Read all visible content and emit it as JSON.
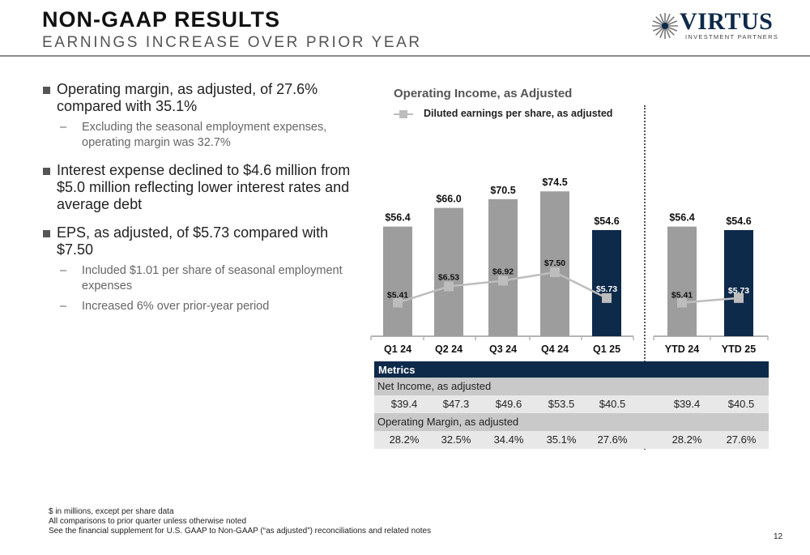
{
  "header": {
    "title": "NON-GAAP RESULTS",
    "subtitle": "EARNINGS INCREASE OVER PRIOR YEAR"
  },
  "logo": {
    "wordmark": "VIRTUS",
    "tagline": "INVESTMENT PARTNERS",
    "brand_color": "#0e2a4a"
  },
  "bullets": [
    {
      "text": "Operating margin, as adjusted, of 27.6% compared with 35.1%",
      "subs": [
        "Excluding the seasonal employment expenses, operating margin was 32.7%"
      ]
    },
    {
      "text": "Interest expense declined to $4.6 million from $5.0 million reflecting lower interest rates and average debt",
      "subs": []
    },
    {
      "text": "EPS, as adjusted, of $5.73 compared with $7.50",
      "subs": [
        "Included $1.01 per share of seasonal employment expenses",
        "Increased 6% over prior-year period"
      ]
    }
  ],
  "chart_data": {
    "type": "bar",
    "title": "Operating Income, as Adjusted",
    "categories": [
      "Q1 24",
      "Q2 24",
      "Q3 24",
      "Q4 24",
      "Q1 25",
      "YTD 24",
      "YTD 25"
    ],
    "series": [
      {
        "type": "bar",
        "values": [
          56.4,
          66.0,
          70.5,
          74.5,
          54.6,
          56.4,
          54.6
        ],
        "labels": [
          "$56.4",
          "$66.0",
          "$70.5",
          "$74.5",
          "$54.6",
          "$56.4",
          "$54.6"
        ],
        "colors": [
          "#9d9d9d",
          "#9d9d9d",
          "#9d9d9d",
          "#9d9d9d",
          "#0e2a4a",
          "#9d9d9d",
          "#0e2a4a"
        ]
      },
      {
        "type": "line",
        "name": "Diluted earnings per share, as adjusted",
        "values": [
          5.41,
          6.53,
          6.92,
          7.5,
          5.73,
          5.41,
          5.73
        ],
        "labels": [
          "$5.41",
          "$6.53",
          "$6.92",
          "$7.50",
          "$5.73",
          "$5.41",
          "$5.73"
        ],
        "color": "#bdbdbd"
      }
    ],
    "groups": [
      [
        "Q1 24",
        "Q2 24",
        "Q3 24",
        "Q4 24",
        "Q1 25"
      ],
      [
        "YTD 24",
        "YTD 25"
      ]
    ],
    "legend_position": "top-left",
    "grid": false
  },
  "metrics": {
    "header": "Metrics",
    "rows": [
      {
        "label": "Net Income, as adjusted",
        "values": [
          "$39.4",
          "$47.3",
          "$49.6",
          "$53.5",
          "$40.5",
          "$39.4",
          "$40.5"
        ]
      },
      {
        "label": "Operating Margin, as adjusted",
        "values": [
          "28.2%",
          "32.5%",
          "34.4%",
          "35.1%",
          "27.6%",
          "28.2%",
          "27.6%"
        ]
      }
    ]
  },
  "footnotes": [
    "$ in millions, except per share data",
    "All comparisons to prior quarter unless otherwise noted",
    "See the financial supplement for U.S. GAAP to Non-GAAP (“as adjusted”) reconciliations and related notes"
  ],
  "page_number": "12"
}
